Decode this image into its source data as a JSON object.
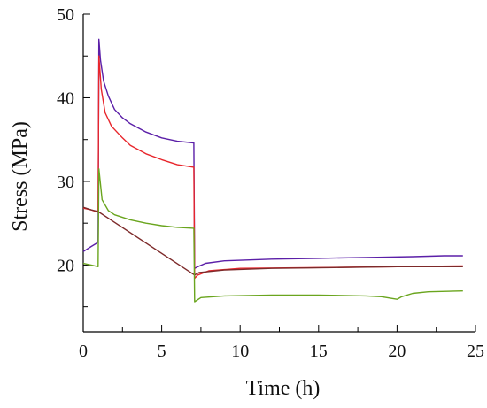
{
  "chart_data": {
    "type": "line",
    "title": "",
    "xlabel": "Time (h)",
    "ylabel": "Stress (MPa)",
    "xlim": [
      0,
      25
    ],
    "ylim": [
      12,
      50
    ],
    "xticks": [
      0,
      5,
      10,
      15,
      20,
      25
    ],
    "yticks": [
      20,
      30,
      40,
      50
    ],
    "grid": false,
    "legend": "none",
    "series": [
      {
        "color": "#5b1fa8",
        "points": [
          [
            0,
            21.6
          ],
          [
            0.5,
            22.2
          ],
          [
            0.85,
            22.6
          ],
          [
            0.95,
            22.8
          ],
          [
            1.0,
            47.0
          ],
          [
            1.1,
            44.5
          ],
          [
            1.3,
            42.0
          ],
          [
            1.6,
            40.2
          ],
          [
            2.0,
            38.6
          ],
          [
            2.5,
            37.6
          ],
          [
            3.0,
            36.9
          ],
          [
            4.0,
            35.9
          ],
          [
            5.0,
            35.2
          ],
          [
            6.0,
            34.8
          ],
          [
            7.05,
            34.6
          ],
          [
            7.1,
            19.6
          ],
          [
            7.3,
            19.8
          ],
          [
            7.8,
            20.2
          ],
          [
            9.0,
            20.5
          ],
          [
            12.0,
            20.7
          ],
          [
            15.0,
            20.8
          ],
          [
            18.0,
            20.9
          ],
          [
            21.0,
            21.0
          ],
          [
            23.0,
            21.1
          ],
          [
            24.2,
            21.1
          ]
        ]
      },
      {
        "color": "#e8262c",
        "points": [
          [
            0,
            26.8
          ],
          [
            0.5,
            26.6
          ],
          [
            0.95,
            26.3
          ],
          [
            1.0,
            45.0
          ],
          [
            1.15,
            41.0
          ],
          [
            1.4,
            38.2
          ],
          [
            1.8,
            36.6
          ],
          [
            2.5,
            35.2
          ],
          [
            3.0,
            34.3
          ],
          [
            4.0,
            33.3
          ],
          [
            5.0,
            32.6
          ],
          [
            6.0,
            32.0
          ],
          [
            7.05,
            31.7
          ],
          [
            7.1,
            18.4
          ],
          [
            7.3,
            18.8
          ],
          [
            8.0,
            19.3
          ],
          [
            10.0,
            19.6
          ],
          [
            15.0,
            19.7
          ],
          [
            20.0,
            19.8
          ],
          [
            24.2,
            19.9
          ]
        ]
      },
      {
        "color": "#7d2a2a",
        "points": [
          [
            0,
            26.9
          ],
          [
            0.5,
            26.6
          ],
          [
            0.95,
            26.4
          ],
          [
            7.1,
            18.8
          ],
          [
            7.4,
            19.1
          ],
          [
            9.0,
            19.4
          ],
          [
            12.0,
            19.6
          ],
          [
            16.0,
            19.7
          ],
          [
            20.0,
            19.8
          ],
          [
            24.2,
            19.8
          ]
        ]
      },
      {
        "color": "#6aa51e",
        "points": [
          [
            0,
            20.2
          ],
          [
            0.5,
            20.0
          ],
          [
            0.95,
            19.8
          ],
          [
            1.0,
            31.5
          ],
          [
            1.2,
            27.8
          ],
          [
            1.6,
            26.5
          ],
          [
            2.0,
            26.0
          ],
          [
            3.0,
            25.4
          ],
          [
            4.0,
            25.0
          ],
          [
            5.0,
            24.7
          ],
          [
            6.0,
            24.5
          ],
          [
            7.05,
            24.4
          ],
          [
            7.1,
            15.6
          ],
          [
            7.5,
            16.1
          ],
          [
            9.0,
            16.3
          ],
          [
            12.0,
            16.4
          ],
          [
            15.0,
            16.4
          ],
          [
            18.0,
            16.3
          ],
          [
            19.0,
            16.2
          ],
          [
            20.0,
            15.9
          ],
          [
            20.3,
            16.2
          ],
          [
            21.0,
            16.6
          ],
          [
            22.0,
            16.8
          ],
          [
            24.2,
            16.9
          ]
        ]
      }
    ]
  }
}
